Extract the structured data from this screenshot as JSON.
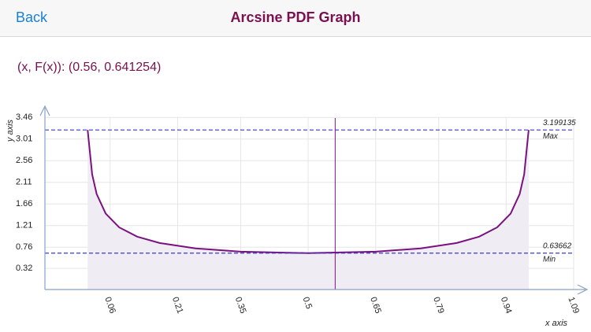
{
  "header": {
    "back": "Back",
    "title": "Arcsine PDF Graph"
  },
  "readout": "(x, F(x)): (0.56, 0.641254)",
  "chart_data": {
    "type": "line",
    "x_label": "x axis",
    "y_label": "y axis",
    "x": [
      0.01,
      0.02,
      0.03,
      0.05,
      0.08,
      0.12,
      0.17,
      0.25,
      0.35,
      0.5,
      0.65,
      0.75,
      0.83,
      0.88,
      0.92,
      0.95,
      0.97,
      0.98,
      0.99
    ],
    "values": [
      3.199135,
      2.2736,
      1.8659,
      1.4605,
      1.1733,
      0.9795,
      0.8474,
      0.7351,
      0.6674,
      0.63662,
      0.6674,
      0.7351,
      0.8474,
      0.9795,
      1.1733,
      1.4605,
      1.8659,
      2.2736,
      3.199135
    ],
    "color": "#7b1180",
    "fill_color": "#efecf3",
    "xlim": [
      -0.085,
      1.09
    ],
    "ylim": [
      -0.12,
      3.66
    ],
    "xticks": [
      0.06,
      0.21,
      0.35,
      0.5,
      0.65,
      0.79,
      0.94,
      1.09
    ],
    "yticks": [
      0.32,
      0.76,
      1.21,
      1.66,
      2.11,
      2.56,
      3.01,
      3.46
    ],
    "grid": true,
    "reference_lines": [
      {
        "value": 3.199135,
        "label": "Max"
      },
      {
        "value": 0.63662,
        "label": "Min"
      }
    ],
    "reference_color": "#3a3ac4",
    "cursor": {
      "x": 0.56,
      "y": 0.641254
    }
  }
}
